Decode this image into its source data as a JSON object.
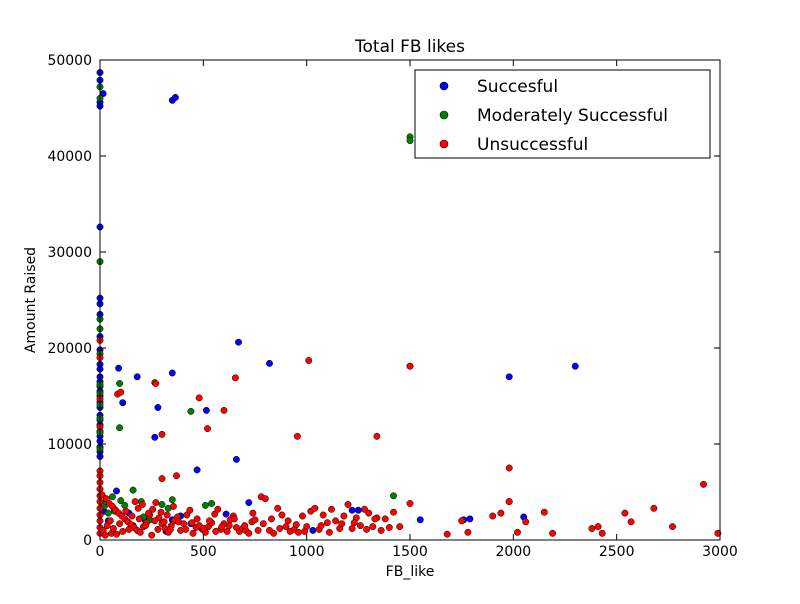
{
  "chart_data": {
    "type": "scatter",
    "title": "Total FB likes",
    "xlabel": "FB_like",
    "ylabel": "Amount Raised",
    "xlim": [
      0,
      3000
    ],
    "ylim": [
      0,
      50000
    ],
    "xticks": [
      0,
      500,
      1000,
      1500,
      2000,
      2500,
      3000
    ],
    "yticks": [
      0,
      10000,
      20000,
      30000,
      40000,
      50000
    ],
    "grid": false,
    "legend_position": "top-right",
    "series": [
      {
        "name": "Succesful",
        "color": "#0000ff",
        "points": [
          [
            0,
            48700
          ],
          [
            0,
            47900
          ],
          [
            0,
            45200
          ],
          [
            0,
            45600
          ],
          [
            15,
            46500
          ],
          [
            0,
            32600
          ],
          [
            0,
            25200
          ],
          [
            0,
            24600
          ],
          [
            0,
            23500
          ],
          [
            0,
            21200
          ],
          [
            0,
            19800
          ],
          [
            0,
            18300
          ],
          [
            0,
            17800
          ],
          [
            0,
            17000
          ],
          [
            0,
            16500
          ],
          [
            0,
            16000
          ],
          [
            0,
            15500
          ],
          [
            0,
            15000
          ],
          [
            0,
            14400
          ],
          [
            0,
            13800
          ],
          [
            0,
            13000
          ],
          [
            0,
            12500
          ],
          [
            0,
            12000
          ],
          [
            0,
            11300
          ],
          [
            0,
            10800
          ],
          [
            0,
            10300
          ],
          [
            0,
            9700
          ],
          [
            0,
            9200
          ],
          [
            0,
            8700
          ],
          [
            350,
            45800
          ],
          [
            365,
            46100
          ],
          [
            670,
            20600
          ],
          [
            820,
            18400
          ],
          [
            90,
            17900
          ],
          [
            180,
            17000
          ],
          [
            350,
            17400
          ],
          [
            1500,
            18100
          ],
          [
            1980,
            17000
          ],
          [
            2300,
            18100
          ],
          [
            110,
            14300
          ],
          [
            280,
            13800
          ],
          [
            515,
            13500
          ],
          [
            265,
            10700
          ],
          [
            660,
            8400
          ],
          [
            470,
            7300
          ],
          [
            80,
            5100
          ],
          [
            720,
            3900
          ],
          [
            390,
            2500
          ],
          [
            350,
            2100
          ],
          [
            220,
            2000
          ],
          [
            1030,
            1000
          ],
          [
            1220,
            3100
          ],
          [
            1250,
            3100
          ],
          [
            1550,
            2100
          ],
          [
            1760,
            2100
          ],
          [
            1790,
            2200
          ],
          [
            2050,
            2400
          ],
          [
            20,
            3000
          ],
          [
            40,
            2000
          ],
          [
            70,
            3200
          ],
          [
            140,
            2800
          ],
          [
            160,
            1500
          ],
          [
            320,
            900
          ],
          [
            440,
            1700
          ],
          [
            610,
            2700
          ]
        ]
      },
      {
        "name": "Moderately Successful",
        "color": "#008000",
        "points": [
          [
            0,
            47200
          ],
          [
            0,
            46000
          ],
          [
            0,
            29000
          ],
          [
            0,
            23000
          ],
          [
            0,
            22000
          ],
          [
            0,
            19400
          ],
          [
            0,
            16200
          ],
          [
            0,
            15300
          ],
          [
            0,
            14100
          ],
          [
            0,
            12700
          ],
          [
            0,
            11200
          ],
          [
            0,
            9500
          ],
          [
            1500,
            42000
          ],
          [
            1500,
            41600
          ],
          [
            95,
            16300
          ],
          [
            95,
            11700
          ],
          [
            265,
            16400
          ],
          [
            440,
            13400
          ],
          [
            1420,
            4600
          ],
          [
            1980,
            4000
          ],
          [
            60,
            4500
          ],
          [
            100,
            4100
          ],
          [
            160,
            5200
          ],
          [
            200,
            4000
          ],
          [
            210,
            2400
          ],
          [
            330,
            3300
          ],
          [
            350,
            4200
          ],
          [
            510,
            3600
          ],
          [
            540,
            3800
          ],
          [
            20,
            3500
          ],
          [
            40,
            2800
          ],
          [
            70,
            3000
          ],
          [
            120,
            3600
          ],
          [
            240,
            2100
          ],
          [
            300,
            3700
          ],
          [
            30,
            4000
          ]
        ]
      },
      {
        "name": "Unsuccessful",
        "color": "#ff0000",
        "points": [
          [
            0,
            20800
          ],
          [
            0,
            19000
          ],
          [
            0,
            14700
          ],
          [
            0,
            11800
          ],
          [
            0,
            7200
          ],
          [
            0,
            6700
          ],
          [
            0,
            6000
          ],
          [
            0,
            5300
          ],
          [
            0,
            4600
          ],
          [
            0,
            4000
          ],
          [
            0,
            3300
          ],
          [
            0,
            2600
          ],
          [
            0,
            2000
          ],
          [
            0,
            1300
          ],
          [
            0,
            700
          ],
          [
            1010,
            18700
          ],
          [
            1500,
            18100
          ],
          [
            655,
            16900
          ],
          [
            270,
            16300
          ],
          [
            85,
            15200
          ],
          [
            100,
            15400
          ],
          [
            480,
            14800
          ],
          [
            600,
            13500
          ],
          [
            520,
            11600
          ],
          [
            300,
            11000
          ],
          [
            955,
            10800
          ],
          [
            1340,
            10800
          ],
          [
            1980,
            7500
          ],
          [
            370,
            6700
          ],
          [
            300,
            6400
          ],
          [
            2920,
            5800
          ],
          [
            10,
            4700
          ],
          [
            30,
            4300
          ],
          [
            45,
            3800
          ],
          [
            60,
            3500
          ],
          [
            75,
            3100
          ],
          [
            90,
            2800
          ],
          [
            105,
            2500
          ],
          [
            120,
            2200
          ],
          [
            135,
            1900
          ],
          [
            150,
            1600
          ],
          [
            165,
            1300
          ],
          [
            180,
            1000
          ],
          [
            195,
            800
          ],
          [
            210,
            1400
          ],
          [
            225,
            1800
          ],
          [
            240,
            2600
          ],
          [
            255,
            3200
          ],
          [
            270,
            3900
          ],
          [
            285,
            2300
          ],
          [
            300,
            1700
          ],
          [
            315,
            1200
          ],
          [
            330,
            800
          ],
          [
            345,
            1500
          ],
          [
            360,
            2000
          ],
          [
            375,
            2400
          ],
          [
            390,
            1000
          ],
          [
            405,
            1700
          ],
          [
            420,
            2600
          ],
          [
            435,
            3100
          ],
          [
            450,
            700
          ],
          [
            465,
            1300
          ],
          [
            480,
            1500
          ],
          [
            495,
            1100
          ],
          [
            510,
            800
          ],
          [
            525,
            1400
          ],
          [
            540,
            1800
          ],
          [
            555,
            2700
          ],
          [
            570,
            3200
          ],
          [
            585,
            1100
          ],
          [
            600,
            1700
          ],
          [
            615,
            900
          ],
          [
            630,
            2100
          ],
          [
            645,
            2500
          ],
          [
            660,
            1300
          ],
          [
            675,
            900
          ],
          [
            690,
            1200
          ],
          [
            705,
            1000
          ],
          [
            720,
            700
          ],
          [
            735,
            1900
          ],
          [
            750,
            2100
          ],
          [
            765,
            1000
          ],
          [
            780,
            4500
          ],
          [
            800,
            4300
          ],
          [
            820,
            1000
          ],
          [
            840,
            700
          ],
          [
            860,
            3300
          ],
          [
            880,
            2600
          ],
          [
            900,
            1400
          ],
          [
            920,
            900
          ],
          [
            940,
            1100
          ],
          [
            960,
            800
          ],
          [
            980,
            2500
          ],
          [
            1000,
            1400
          ],
          [
            1020,
            3000
          ],
          [
            1040,
            3300
          ],
          [
            1060,
            1100
          ],
          [
            1080,
            2600
          ],
          [
            1100,
            1800
          ],
          [
            1120,
            3200
          ],
          [
            1140,
            2000
          ],
          [
            1160,
            1200
          ],
          [
            1180,
            2500
          ],
          [
            1200,
            3700
          ],
          [
            1220,
            1200
          ],
          [
            1240,
            2300
          ],
          [
            1260,
            1500
          ],
          [
            1280,
            3200
          ],
          [
            1300,
            2800
          ],
          [
            1320,
            1400
          ],
          [
            1340,
            2300
          ],
          [
            1360,
            1000
          ],
          [
            1380,
            2200
          ],
          [
            1420,
            2900
          ],
          [
            1450,
            1400
          ],
          [
            1500,
            3800
          ],
          [
            1680,
            600
          ],
          [
            1750,
            2000
          ],
          [
            1780,
            800
          ],
          [
            1900,
            2500
          ],
          [
            1940,
            2800
          ],
          [
            1980,
            4000
          ],
          [
            2020,
            800
          ],
          [
            2060,
            1900
          ],
          [
            2150,
            2900
          ],
          [
            2190,
            700
          ],
          [
            2380,
            1200
          ],
          [
            2410,
            1400
          ],
          [
            2430,
            700
          ],
          [
            2540,
            2800
          ],
          [
            2570,
            1900
          ],
          [
            2680,
            3300
          ],
          [
            2770,
            1400
          ],
          [
            2990,
            700
          ],
          [
            15,
            1000
          ],
          [
            25,
            500
          ],
          [
            35,
            1500
          ],
          [
            50,
            2000
          ],
          [
            55,
            700
          ],
          [
            65,
            1200
          ],
          [
            80,
            600
          ],
          [
            95,
            1700
          ],
          [
            110,
            900
          ],
          [
            125,
            3000
          ],
          [
            140,
            1100
          ],
          [
            155,
            2500
          ],
          [
            170,
            4000
          ],
          [
            185,
            3300
          ],
          [
            190,
            2200
          ],
          [
            205,
            3700
          ],
          [
            220,
            1500
          ],
          [
            235,
            2800
          ],
          [
            250,
            500
          ],
          [
            265,
            2000
          ],
          [
            280,
            1100
          ],
          [
            295,
            2900
          ],
          [
            310,
            1900
          ],
          [
            325,
            2600
          ],
          [
            340,
            1100
          ],
          [
            355,
            3500
          ],
          [
            380,
            1900
          ],
          [
            415,
            1100
          ],
          [
            445,
            1800
          ],
          [
            470,
            2200
          ],
          [
            500,
            1200
          ],
          [
            530,
            2000
          ],
          [
            560,
            900
          ],
          [
            590,
            1400
          ],
          [
            625,
            1500
          ],
          [
            650,
            2200
          ],
          [
            700,
            1500
          ],
          [
            740,
            2800
          ],
          [
            790,
            1700
          ],
          [
            830,
            2200
          ],
          [
            870,
            1200
          ],
          [
            910,
            2000
          ],
          [
            950,
            1600
          ],
          [
            990,
            900
          ],
          [
            1070,
            1500
          ],
          [
            1110,
            800
          ],
          [
            1170,
            1700
          ],
          [
            1230,
            1800
          ],
          [
            1290,
            1100
          ],
          [
            1330,
            2200
          ],
          [
            1400,
            1300
          ]
        ]
      }
    ]
  }
}
